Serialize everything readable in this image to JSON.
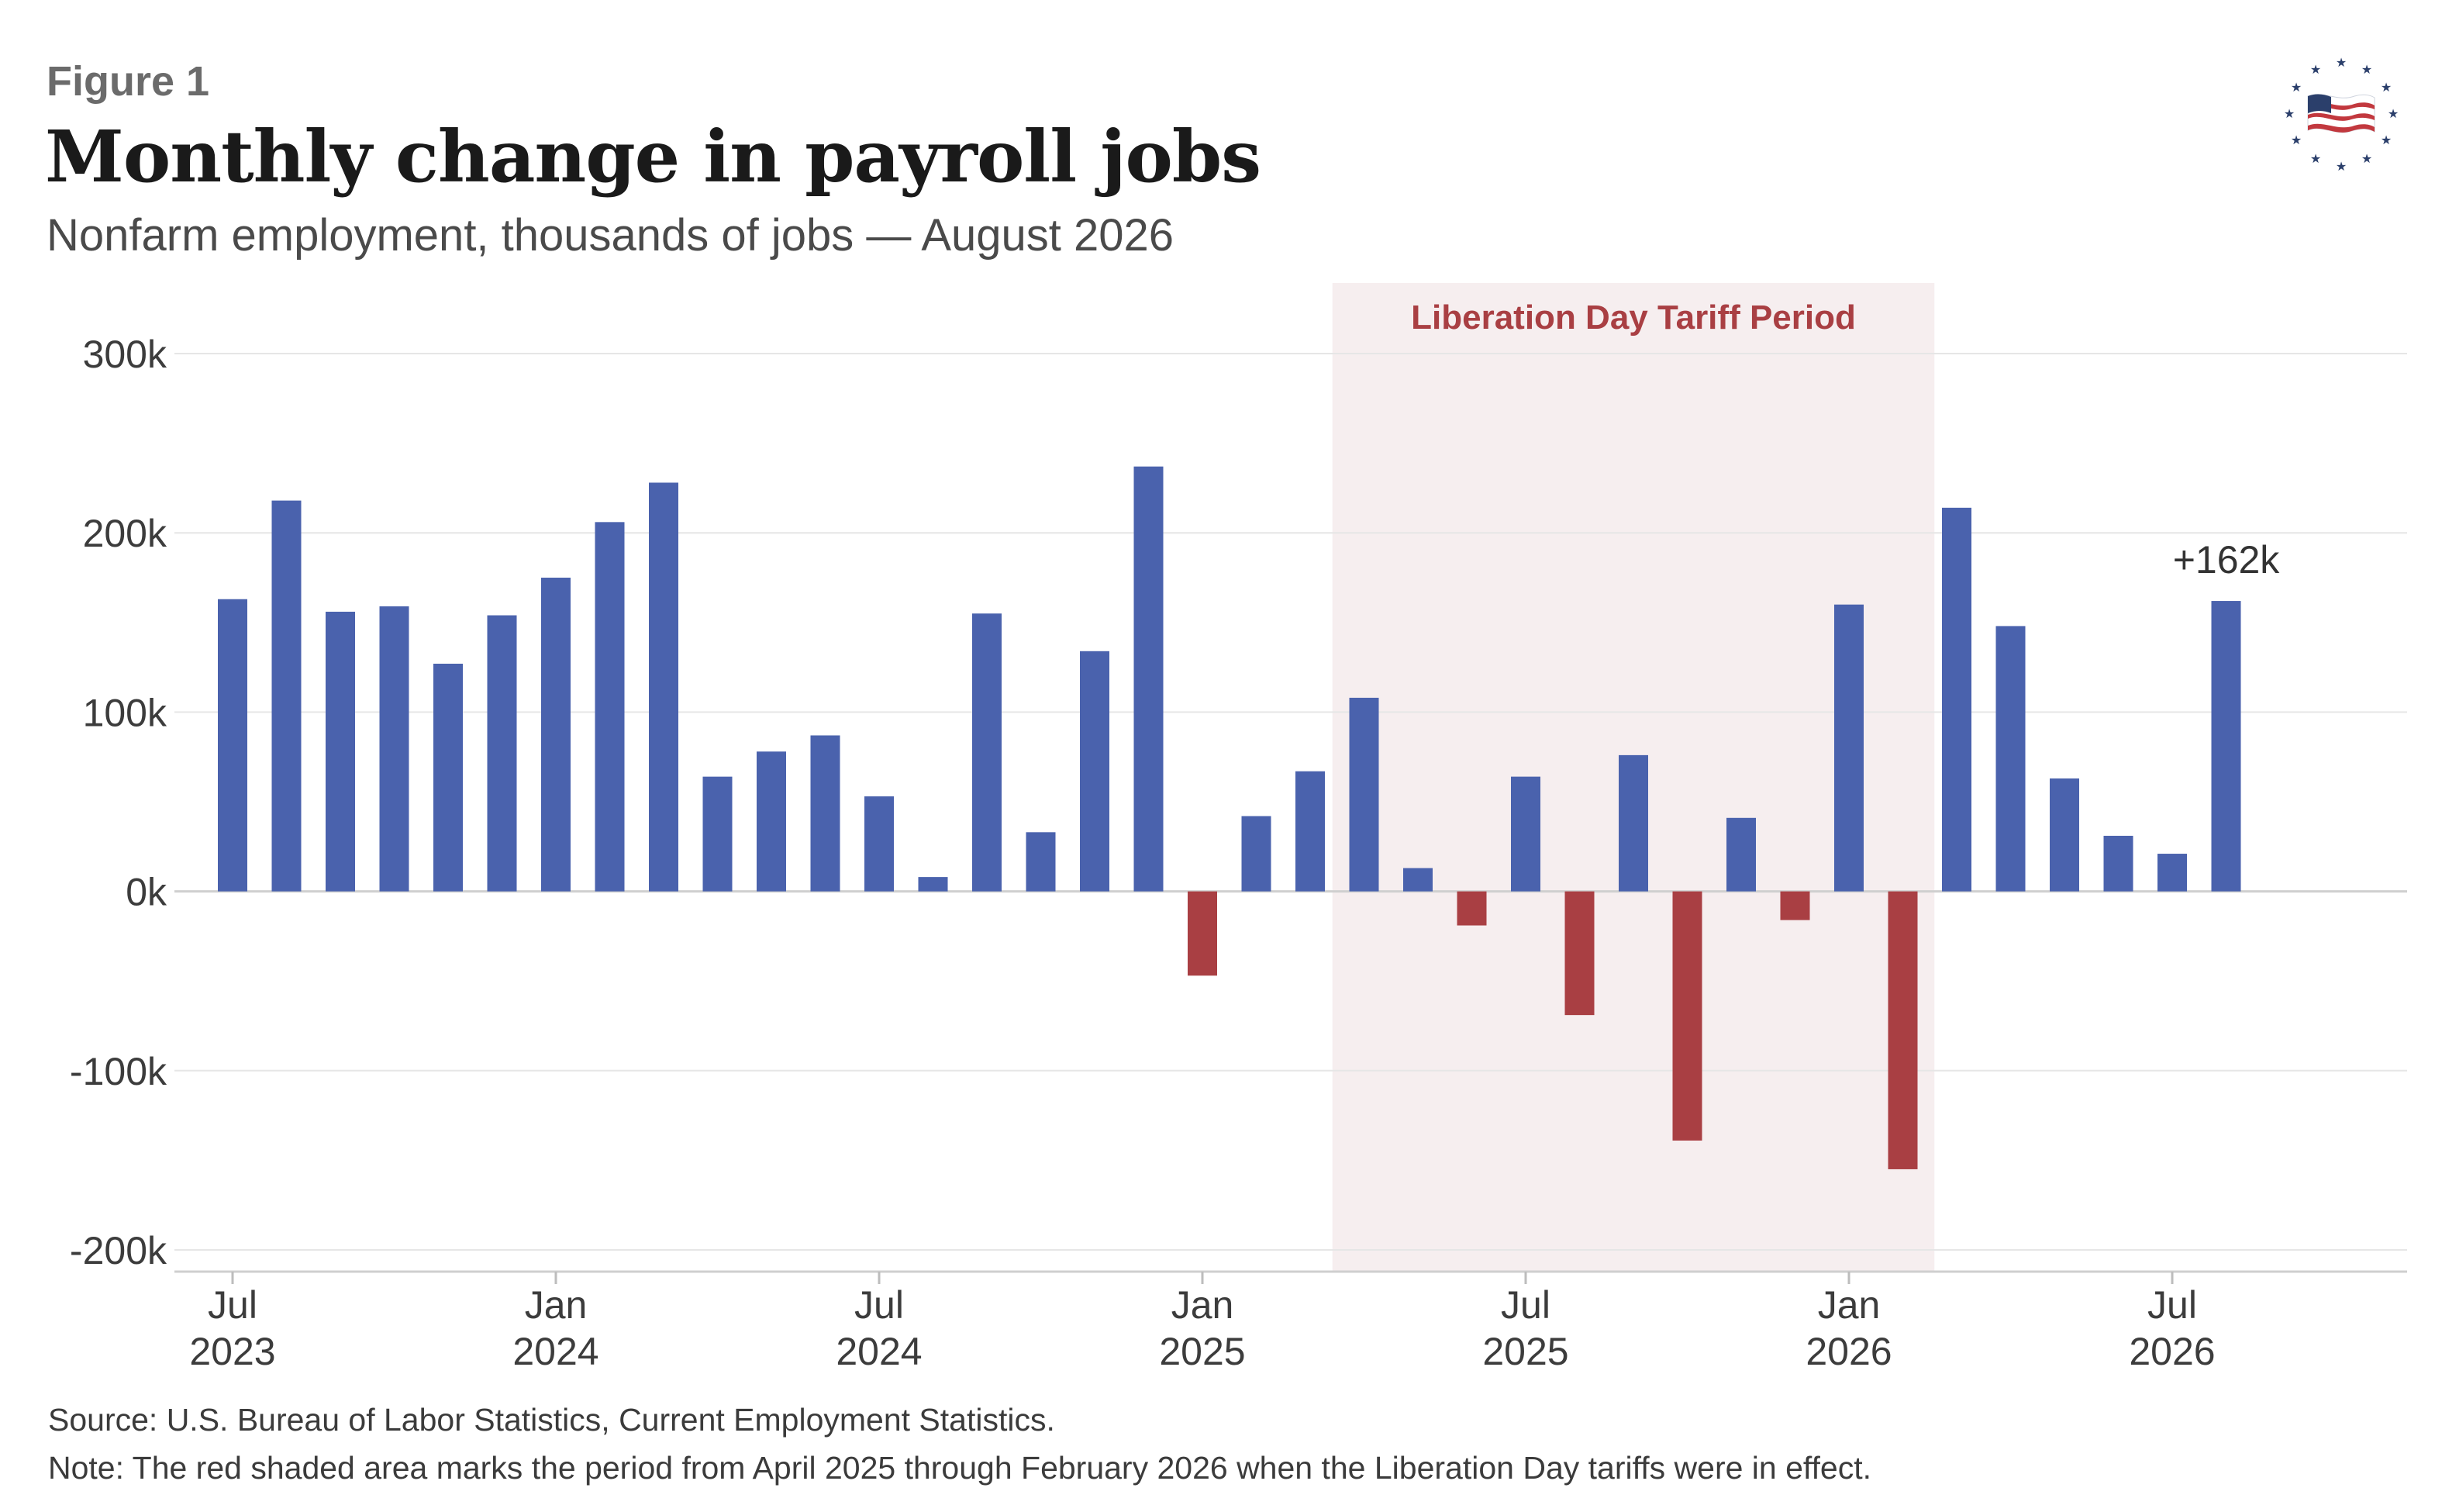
{
  "figure_label": "Figure 1",
  "title": "Monthly change in payroll jobs",
  "subtitle": "Nonfarm employment, thousands of jobs — August 2026",
  "source_text": "Source: U.S. Bureau of Labor Statistics, Current Employment Statistics.",
  "note_text": "Note: The red shaded area marks the period from April 2025 through February 2026 when the Liberation Day tariffs were in effect.",
  "logo_icon": "flag-with-stars-icon",
  "colors": {
    "positive": "#4a62ad",
    "negative": "#a93f43",
    "shade": "#f6eeef",
    "shade_label": "#a93f43"
  },
  "chart_data": {
    "type": "bar",
    "x": [
      "2023-07",
      "2023-08",
      "2023-09",
      "2023-10",
      "2023-11",
      "2023-12",
      "2024-01",
      "2024-02",
      "2024-03",
      "2024-04",
      "2024-05",
      "2024-06",
      "2024-07",
      "2024-08",
      "2024-09",
      "2024-10",
      "2024-11",
      "2024-12",
      "2025-01",
      "2025-02",
      "2025-03",
      "2025-04",
      "2025-05",
      "2025-06",
      "2025-07",
      "2025-08",
      "2025-09",
      "2025-10",
      "2025-11",
      "2025-12",
      "2026-01",
      "2026-02",
      "2026-03",
      "2026-04",
      "2026-05",
      "2026-06",
      "2026-07",
      "2026-08"
    ],
    "values": [
      163,
      218,
      156,
      159,
      127,
      154,
      175,
      206,
      228,
      64,
      78,
      87,
      53,
      8,
      155,
      33,
      134,
      237,
      -47,
      42,
      67,
      108,
      13,
      -19,
      64,
      -69,
      76,
      -139,
      41,
      -16,
      160,
      -155,
      214,
      148,
      63,
      31,
      21,
      162
    ],
    "ylim": [
      -200,
      300
    ],
    "y_ticks": [
      {
        "value": 300,
        "label": "300k"
      },
      {
        "value": 200,
        "label": "200k"
      },
      {
        "value": 100,
        "label": "100k"
      },
      {
        "value": 0,
        "label": "0k"
      },
      {
        "value": -100,
        "label": "-100k"
      },
      {
        "value": -200,
        "label": "-200k"
      }
    ],
    "x_ticks": [
      {
        "date": "2023-07",
        "month": "Jul",
        "year": "2023"
      },
      {
        "date": "2024-01",
        "month": "Jan",
        "year": "2024"
      },
      {
        "date": "2024-07",
        "month": "Jul",
        "year": "2024"
      },
      {
        "date": "2025-01",
        "month": "Jan",
        "year": "2025"
      },
      {
        "date": "2025-07",
        "month": "Jul",
        "year": "2025"
      },
      {
        "date": "2026-01",
        "month": "Jan",
        "year": "2026"
      },
      {
        "date": "2026-07",
        "month": "Jul",
        "year": "2026"
      }
    ],
    "shaded_period": {
      "start": "2025-04",
      "end": "2026-02",
      "label": "Liberation Day Tariff Period"
    },
    "annotation": {
      "date": "2026-08",
      "text": "+162k"
    },
    "grid": true
  }
}
